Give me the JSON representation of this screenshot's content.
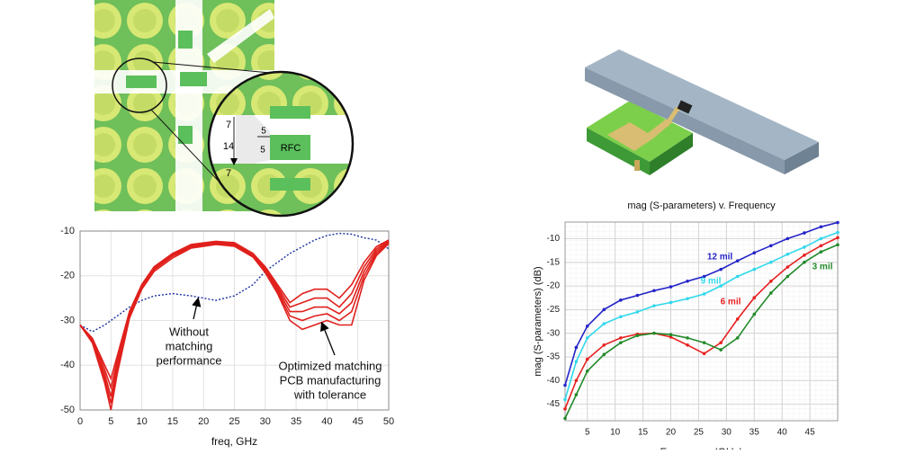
{
  "figure_labels": {
    "dims": [
      "7",
      "14",
      "7",
      "5",
      "5"
    ],
    "component": "RFC"
  },
  "chart_data": [
    {
      "type": "line",
      "xlabel": "freq, GHz",
      "x": [
        0,
        2,
        4,
        5,
        6,
        8,
        10,
        12,
        15,
        18,
        22,
        25,
        28,
        30,
        32,
        34,
        36,
        38,
        40,
        42,
        44,
        46,
        48,
        50
      ],
      "xlim": [
        0,
        50
      ],
      "xticks": [
        0,
        5,
        10,
        15,
        20,
        25,
        30,
        35,
        40,
        45,
        50
      ],
      "ylim": [
        -50,
        -10
      ],
      "yticks": [
        -10,
        -20,
        -30,
        -40,
        -50
      ],
      "grid": true,
      "series": [
        {
          "color": "#1a2fa0",
          "line_style": "dashed",
          "values": [
            -31,
            -32.5,
            -31,
            -30,
            -29,
            -27,
            -25.5,
            -24.5,
            -24,
            -24.5,
            -25.5,
            -24.5,
            -22,
            -19,
            -17,
            -15,
            -13.5,
            -12,
            -11,
            -10.5,
            -10.7,
            -11.5,
            -12,
            -14
          ]
        },
        {
          "color": "#e0201c",
          "values": [
            -31,
            -34,
            -40,
            -43,
            -38,
            -28,
            -22,
            -18,
            -15,
            -13,
            -12.3,
            -12.6,
            -15,
            -18,
            -22,
            -26,
            -24,
            -23,
            -23,
            -25,
            -22,
            -17,
            -13.5,
            -12
          ]
        },
        {
          "color": "#e0201c",
          "values": [
            -31,
            -34,
            -41,
            -45,
            -39,
            -28,
            -22,
            -18,
            -15,
            -13.2,
            -12.4,
            -12.8,
            -15.2,
            -18.3,
            -22.5,
            -27,
            -26,
            -25,
            -25,
            -27,
            -24,
            -18,
            -14,
            -12.2
          ]
        },
        {
          "color": "#e0201c",
          "values": [
            -31,
            -34.5,
            -42,
            -47,
            -40,
            -28.5,
            -22.3,
            -18.3,
            -15.3,
            -13.4,
            -12.6,
            -13,
            -15.4,
            -18.6,
            -23,
            -28,
            -28,
            -27,
            -27,
            -28.5,
            -26,
            -19,
            -14.5,
            -12.4
          ]
        },
        {
          "color": "#e0201c",
          "values": [
            -31,
            -34.5,
            -43,
            -48.5,
            -41,
            -29,
            -22.6,
            -18.6,
            -15.6,
            -13.6,
            -12.8,
            -13.2,
            -15.6,
            -19,
            -23.5,
            -29,
            -30,
            -29,
            -28.5,
            -30,
            -28,
            -20,
            -15,
            -12.6
          ]
        },
        {
          "color": "#e0201c",
          "values": [
            -31,
            -35,
            -44,
            -50,
            -42,
            -29.5,
            -23,
            -19,
            -16,
            -13.8,
            -13,
            -13.4,
            -15.8,
            -19.3,
            -24,
            -30,
            -32,
            -31,
            -30,
            -31,
            -31,
            -21,
            -15.5,
            -12.8
          ]
        }
      ],
      "annotations": [
        {
          "lines": [
            "Without",
            "matching",
            "performance"
          ]
        },
        {
          "lines": [
            "Optimized matching",
            "PCB manufacturing",
            "with tolerance"
          ]
        }
      ]
    },
    {
      "type": "line",
      "title": "mag (S-parameters) v. Frequency",
      "xlabel": "Frequency (GHz)",
      "ylabel": "mag (S-parameters) (dB)",
      "x": [
        1,
        3,
        5,
        8,
        11,
        14,
        17,
        20,
        23,
        26,
        29,
        32,
        35,
        38,
        41,
        44,
        47,
        50
      ],
      "xlim": [
        1,
        50
      ],
      "xticks": [
        5,
        10,
        15,
        20,
        25,
        30,
        35,
        40,
        45
      ],
      "ylim": [
        -48.5,
        -6.5
      ],
      "yticks": [
        -10,
        -15,
        -20,
        -25,
        -30,
        -35,
        -40,
        -45
      ],
      "grid": true,
      "minor_grid": true,
      "markers": true,
      "series": [
        {
          "name": "12 mil",
          "color": "#2424c8",
          "values": [
            -41,
            -33,
            -28.5,
            -25,
            -23,
            -22,
            -21,
            -20.2,
            -19,
            -18,
            -16.5,
            -14.7,
            -13,
            -11.5,
            -10,
            -8.8,
            -7.5,
            -6.6
          ]
        },
        {
          "name": "9 mil",
          "color": "#30d8ec",
          "values": [
            -44,
            -36,
            -31,
            -28,
            -26.5,
            -25.5,
            -24.2,
            -23.5,
            -22.7,
            -21.7,
            -20,
            -18,
            -16.5,
            -15,
            -13.3,
            -11.8,
            -10,
            -8.7
          ]
        },
        {
          "name": "6 mil",
          "color": "#e82020",
          "values": [
            -46,
            -40,
            -35.5,
            -32.5,
            -31,
            -30.2,
            -30,
            -30.8,
            -32.5,
            -34.3,
            -32,
            -27,
            -22.5,
            -19,
            -16,
            -13.5,
            -11.5,
            -9.8
          ]
        },
        {
          "name": "3 mil",
          "color": "#228a2a",
          "values": [
            -48,
            -43,
            -38,
            -34.5,
            -32,
            -30.5,
            -30,
            -30.3,
            -31,
            -32,
            -33.5,
            -31,
            -26,
            -21.5,
            -18,
            -15,
            -12.8,
            -11.3
          ]
        }
      ]
    }
  ]
}
